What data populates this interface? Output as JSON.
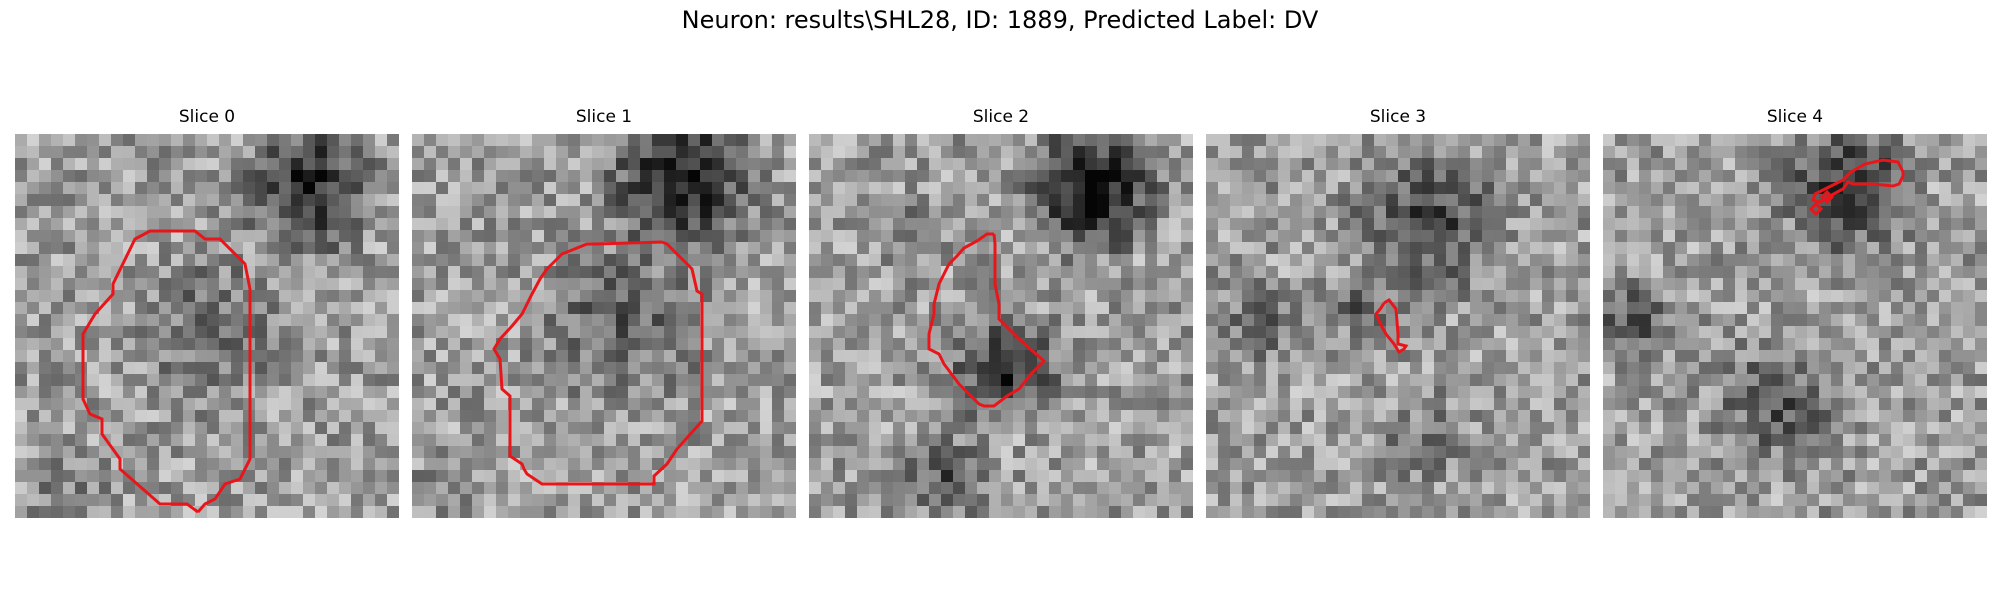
{
  "figure": {
    "title": "Neuron: results\\SHL28, ID: 1889, Predicted Label: DV",
    "contour_color": "#e8161a"
  },
  "panels": [
    {
      "title": "Slice 0"
    },
    {
      "title": "Slice 1"
    },
    {
      "title": "Slice 2"
    },
    {
      "title": "Slice 3"
    },
    {
      "title": "Slice 4"
    }
  ]
}
